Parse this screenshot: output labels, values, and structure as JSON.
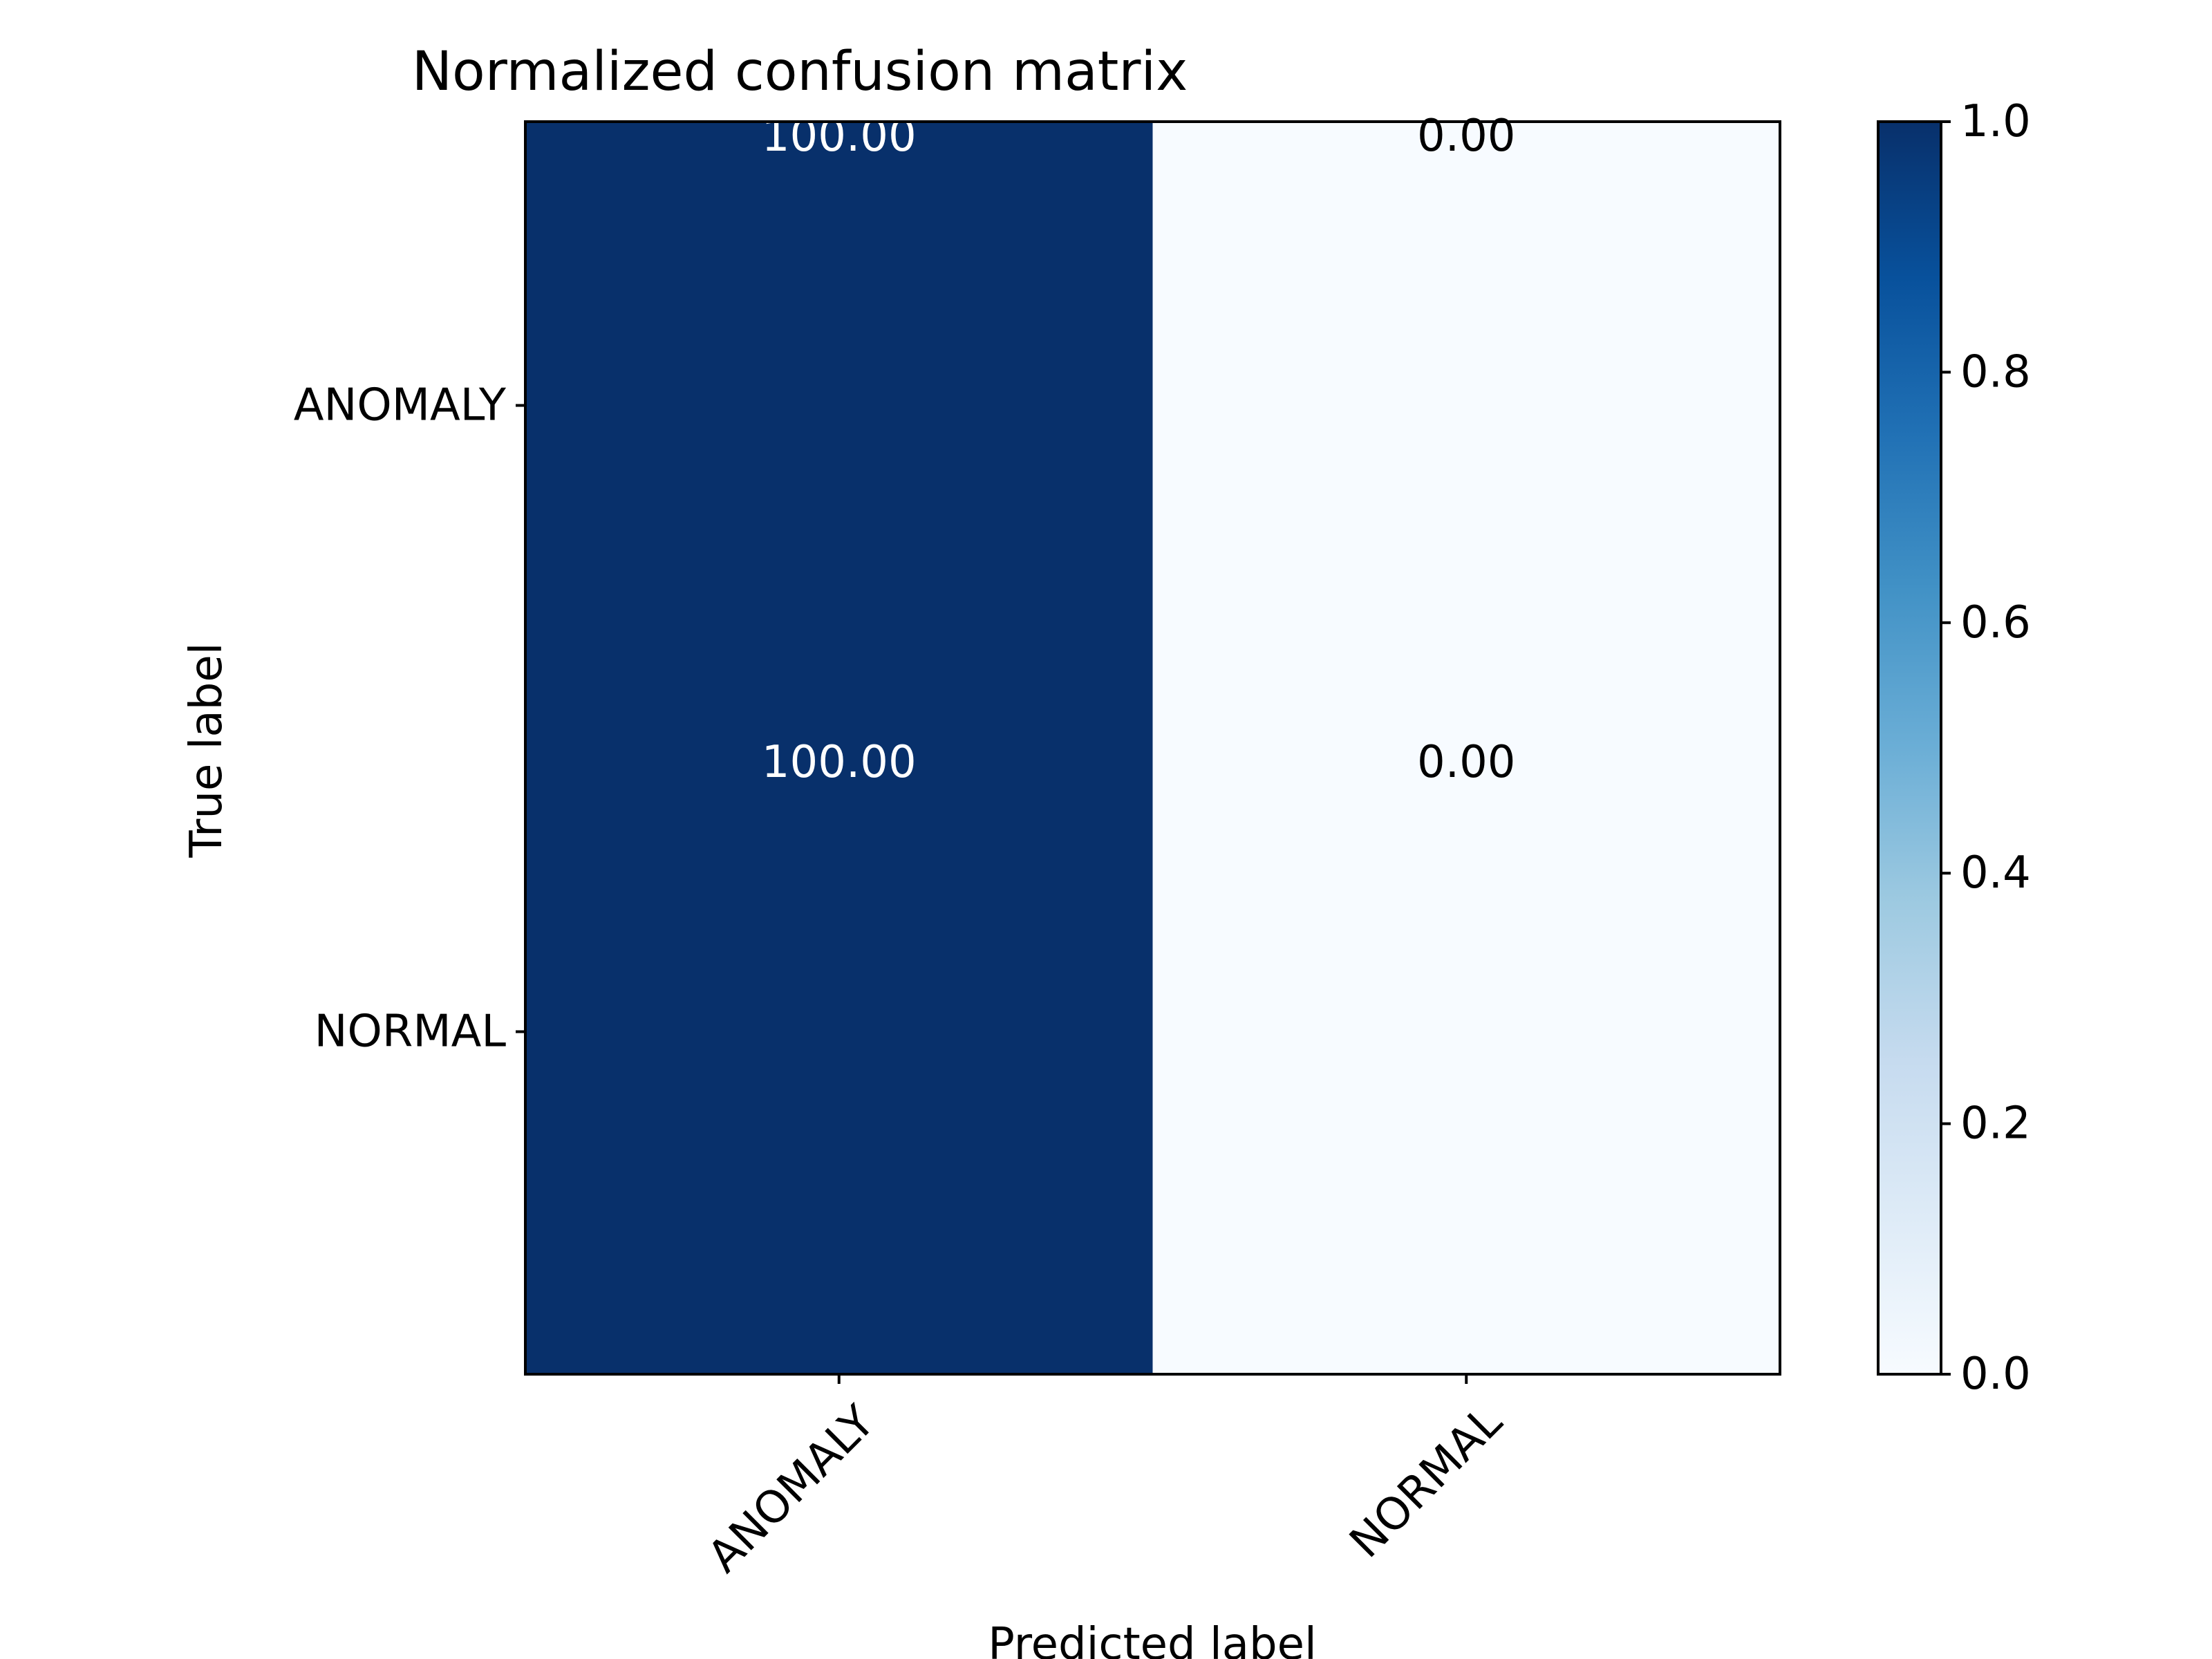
{
  "chart_data": {
    "type": "heatmap",
    "title": "Normalized confusion matrix",
    "xlabel": "Predicted label",
    "ylabel": "True label",
    "x_categories": [
      "ANOMALY",
      "NORMAL"
    ],
    "y_categories": [
      "ANOMALY",
      "NORMAL"
    ],
    "values": [
      [
        1.0,
        0.0
      ],
      [
        1.0,
        0.0
      ]
    ],
    "cell_labels": [
      [
        "100.00",
        "0.00"
      ],
      [
        "100.00",
        "0.00"
      ]
    ],
    "colormap": "Blues",
    "colors": {
      "min": "#f7fbff",
      "max": "#08306b",
      "stops": [
        "#f7fbff",
        "#deebf7",
        "#c6dbef",
        "#9ecae1",
        "#6baed6",
        "#4292c6",
        "#2171b5",
        "#08519c",
        "#08306b"
      ],
      "text_on_dark": "#ffffff",
      "text_on_light": "#000000"
    },
    "colorbar": {
      "range": [
        0.0,
        1.0
      ],
      "ticks": [
        0.0,
        0.2,
        0.4,
        0.6,
        0.8,
        1.0
      ],
      "tick_labels": [
        "0.0",
        "0.2",
        "0.4",
        "0.6",
        "0.8",
        "1.0"
      ]
    },
    "x_tick_rotation_deg": 45,
    "grid": false
  }
}
